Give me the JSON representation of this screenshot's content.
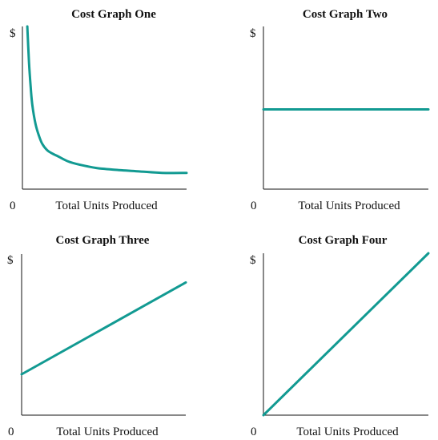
{
  "chart_data": [
    {
      "type": "line",
      "title": "Cost Graph One",
      "xlabel": "Total Units Produced",
      "ylabel": "$",
      "origin_label": "0",
      "color": "#129a92",
      "xlim": [
        0,
        100
      ],
      "ylim": [
        0,
        100
      ],
      "series": [
        {
          "x": [
            3,
            4,
            5,
            6,
            8,
            10,
            12,
            15,
            18,
            22,
            28,
            35,
            45,
            55,
            70,
            85,
            100
          ],
          "y": [
            100,
            78,
            63,
            52,
            40,
            33,
            28,
            24,
            22,
            20,
            17,
            15,
            13,
            12,
            11,
            10,
            10
          ]
        }
      ]
    },
    {
      "type": "line",
      "title": "Cost Graph Two",
      "xlabel": "Total Units Produced",
      "ylabel": "$",
      "origin_label": "0",
      "color": "#129a92",
      "xlim": [
        0,
        100
      ],
      "ylim": [
        0,
        100
      ],
      "series": [
        {
          "x": [
            0,
            100
          ],
          "y": [
            49,
            49
          ]
        }
      ]
    },
    {
      "type": "line",
      "title": "Cost Graph Three",
      "xlabel": "Total Units Produced",
      "ylabel": "$",
      "origin_label": "0",
      "color": "#129a92",
      "xlim": [
        0,
        100
      ],
      "ylim": [
        0,
        100
      ],
      "series": [
        {
          "x": [
            0,
            100
          ],
          "y": [
            28,
            91
          ]
        }
      ]
    },
    {
      "type": "line",
      "title": "Cost Graph Four",
      "xlabel": "Total Units Produced",
      "ylabel": "$",
      "origin_label": "0",
      "color": "#129a92",
      "xlim": [
        0,
        100
      ],
      "ylim": [
        0,
        100
      ],
      "series": [
        {
          "x": [
            0,
            100
          ],
          "y": [
            0,
            100
          ]
        }
      ]
    }
  ]
}
